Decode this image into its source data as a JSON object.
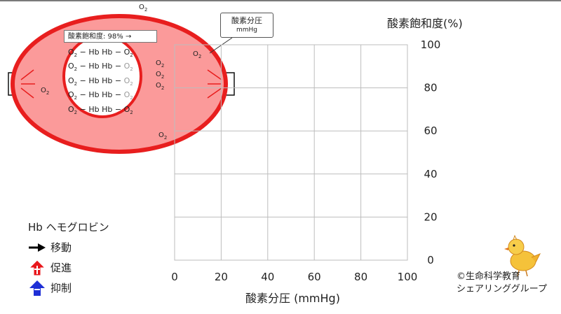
{
  "diagram": {
    "saturation_label": "酸素飽和度: 98% →",
    "hb_rows": [
      {
        "left": "O",
        "mid": " − Hb Hb − ",
        "right": "O",
        "right_grey": false
      },
      {
        "left": "O",
        "mid": " − Hb Hb − ",
        "right": "O",
        "right_grey": true
      },
      {
        "left": "O",
        "mid": " − Hb Hb − ",
        "right": "O",
        "right_grey": true
      },
      {
        "left": "O",
        "mid": " − Hb Hb − ",
        "right": "O",
        "right_grey": true
      },
      {
        "left": "O",
        "mid": " − Hb Hb − ",
        "right": "O",
        "right_grey": false
      }
    ],
    "o2_base": "O",
    "o2_sub": "2",
    "callout_title": "酸素分圧",
    "callout_unit": "mmHg"
  },
  "chart_data": {
    "type": "scatter",
    "ylabel": "酸素飽和度(%)",
    "xlabel": "酸素分圧 (mmHg)",
    "xlim": [
      0,
      100
    ],
    "ylim": [
      0,
      100
    ],
    "x_ticks": [
      "0",
      "20",
      "40",
      "60",
      "80",
      "100"
    ],
    "y_ticks": [
      "100",
      "80",
      "60",
      "40",
      "20",
      "0"
    ],
    "grid": true,
    "points": []
  },
  "legend": {
    "hb": "Hb ヘモグロビン",
    "move": "移動",
    "promote": "促進",
    "inhibit": "抑制",
    "colors": {
      "move": "#000000",
      "promote": "#e8161b",
      "inhibit": "#1e2fd6"
    }
  },
  "credit": {
    "line1": "©生命科学教育",
    "line2": "シェアリンググループ"
  },
  "colors": {
    "cell_fill": "#fb9a9a",
    "cell_stroke": "#e81e1e",
    "grid": "#bdbdbd"
  }
}
